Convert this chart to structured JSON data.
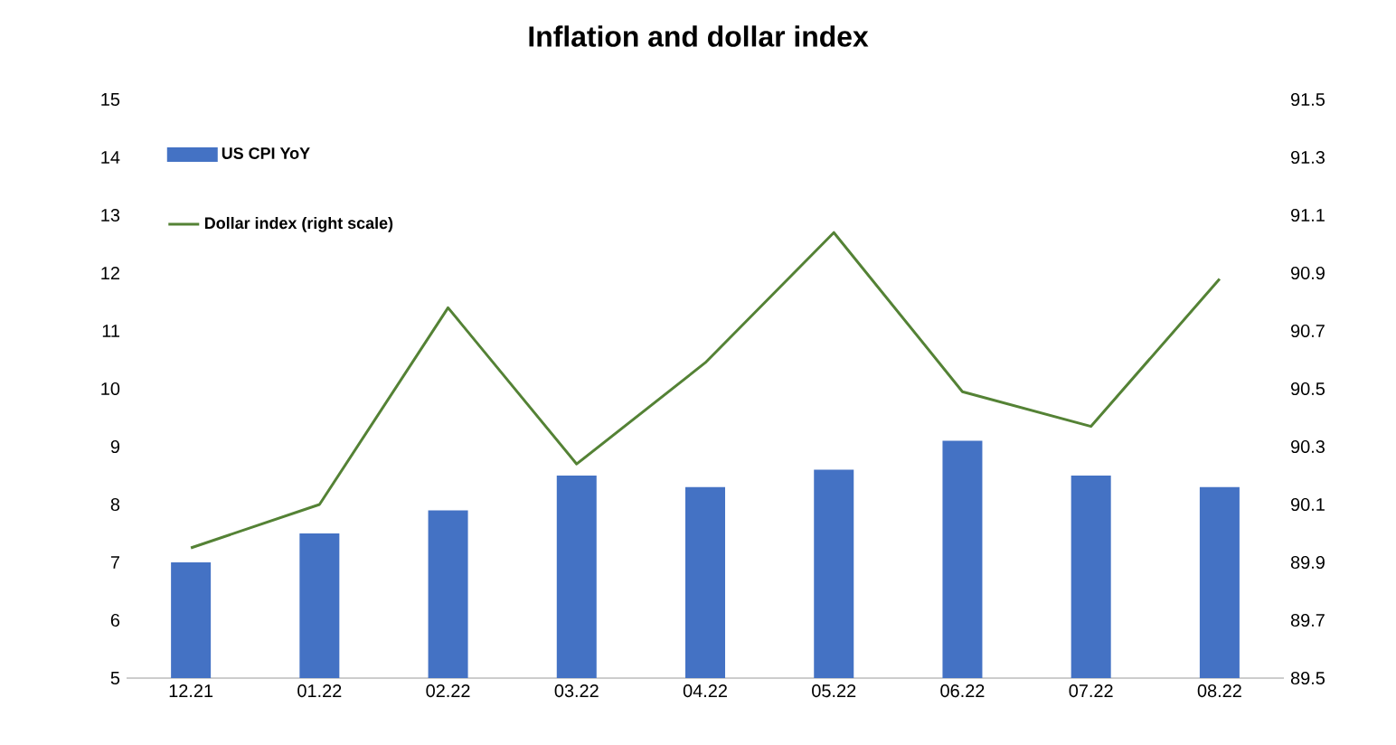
{
  "chart_data": {
    "type": "bar",
    "title": "Inflation and dollar index",
    "categories": [
      "12.21",
      "01.22",
      "02.22",
      "03.22",
      "04.22",
      "05.22",
      "06.22",
      "07.22",
      "08.22"
    ],
    "series": [
      {
        "name": "US CPI YoY",
        "color": "#4472c4",
        "values": [
          7.0,
          7.5,
          7.9,
          8.5,
          8.3,
          8.6,
          9.1,
          8.5,
          8.3
        ]
      },
      {
        "name": "Dollar index (right scale)",
        "type": "line",
        "axis": "y2",
        "color": "#548235",
        "values": [
          89.95,
          90.1,
          90.78,
          90.24,
          90.59,
          91.04,
          90.49,
          90.37,
          90.88
        ]
      }
    ],
    "ylim": [
      5,
      15
    ],
    "yticks": [
      5,
      6,
      7,
      8,
      9,
      10,
      11,
      12,
      13,
      14,
      15
    ],
    "y2lim": [
      89.5,
      91.5
    ],
    "y2ticks": [
      89.5,
      89.7,
      89.9,
      90.1,
      90.3,
      90.5,
      90.7,
      90.9,
      91.1,
      91.3,
      91.5
    ],
    "legend": "top left"
  }
}
